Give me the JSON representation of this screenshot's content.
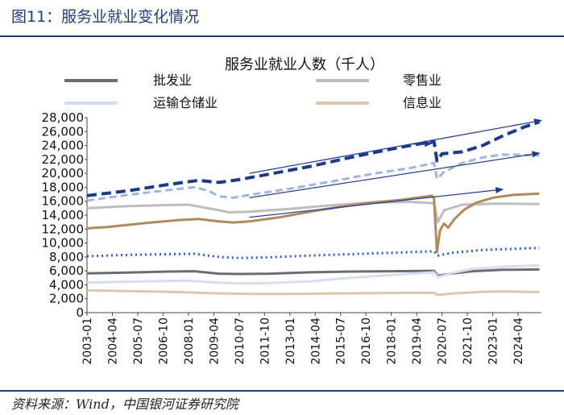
{
  "figure": {
    "title": "图11：服务业就业变化情况",
    "source": "资料来源：Wind，中国银河证券研究院"
  },
  "chart_data": {
    "type": "line",
    "title": "服务业就业人数（千人）",
    "xlabel": "",
    "ylabel": "",
    "ylim": [
      0,
      28000
    ],
    "yticks": [
      "0",
      "2,000",
      "4,000",
      "6,000",
      "8,000",
      "10,000",
      "12,000",
      "14,000",
      "16,000",
      "18,000",
      "20,000",
      "22,000",
      "24,000",
      "26,000",
      "28,000"
    ],
    "xticks": [
      "2003-01",
      "2004-04",
      "2005-07",
      "2006-10",
      "2008-01",
      "2009-04",
      "2010-07",
      "2011-10",
      "2013-01",
      "2014-04",
      "2015-07",
      "2016-10",
      "2018-01",
      "2019-04",
      "2020-07",
      "2021-10",
      "2023-01",
      "2024-04"
    ],
    "xrange": [
      2003.0,
      2025.4
    ],
    "legend": [
      {
        "label": "批发业",
        "color": "#6d6d6d"
      },
      {
        "label": "零售业",
        "color": "#bdbdbd"
      },
      {
        "label": "运输仓储业",
        "color": "#d5deef"
      },
      {
        "label": "信息业",
        "color": "#dcc7ad"
      }
    ],
    "series": [
      {
        "name": "批发业",
        "color": "#6d6d6d",
        "dash": "none",
        "width": 3,
        "points": [
          [
            2003.0,
            5650
          ],
          [
            2005.0,
            5750
          ],
          [
            2007.0,
            5900
          ],
          [
            2008.3,
            5950
          ],
          [
            2009.5,
            5600
          ],
          [
            2010.5,
            5550
          ],
          [
            2012.0,
            5600
          ],
          [
            2014.0,
            5800
          ],
          [
            2016.0,
            5900
          ],
          [
            2018.0,
            5950
          ],
          [
            2020.1,
            6000
          ],
          [
            2020.3,
            5300
          ],
          [
            2020.9,
            5600
          ],
          [
            2022.0,
            5950
          ],
          [
            2023.5,
            6150
          ],
          [
            2025.3,
            6200
          ]
        ]
      },
      {
        "name": "零售业",
        "color": "#bdbdbd",
        "dash": "none",
        "width": 3,
        "points": [
          [
            2003.0,
            15000
          ],
          [
            2005.0,
            15300
          ],
          [
            2007.0,
            15450
          ],
          [
            2008.0,
            15500
          ],
          [
            2009.5,
            14700
          ],
          [
            2010.0,
            14400
          ],
          [
            2011.0,
            14500
          ],
          [
            2013.0,
            14900
          ],
          [
            2015.0,
            15400
          ],
          [
            2017.0,
            15800
          ],
          [
            2019.0,
            15900
          ],
          [
            2020.1,
            15700
          ],
          [
            2020.3,
            13000
          ],
          [
            2020.6,
            14700
          ],
          [
            2021.5,
            15500
          ],
          [
            2023.0,
            15650
          ],
          [
            2025.3,
            15600
          ]
        ]
      },
      {
        "name": "运输仓储业",
        "color": "#d5deef",
        "dash": "none",
        "width": 3,
        "points": [
          [
            2003.0,
            4300
          ],
          [
            2005.0,
            4450
          ],
          [
            2008.0,
            4600
          ],
          [
            2009.5,
            4300
          ],
          [
            2010.5,
            4200
          ],
          [
            2012.0,
            4250
          ],
          [
            2014.0,
            4500
          ],
          [
            2016.0,
            5000
          ],
          [
            2018.0,
            5400
          ],
          [
            2020.1,
            5800
          ],
          [
            2020.3,
            5100
          ],
          [
            2021.0,
            5700
          ],
          [
            2022.0,
            6300
          ],
          [
            2023.5,
            6600
          ],
          [
            2025.3,
            6800
          ]
        ]
      },
      {
        "name": "信息业",
        "color": "#dcc7ad",
        "dash": "none",
        "width": 3,
        "points": [
          [
            2003.0,
            3200
          ],
          [
            2005.0,
            3100
          ],
          [
            2007.0,
            3000
          ],
          [
            2009.0,
            2800
          ],
          [
            2011.0,
            2700
          ],
          [
            2013.0,
            2700
          ],
          [
            2015.0,
            2750
          ],
          [
            2017.0,
            2800
          ],
          [
            2019.0,
            2850
          ],
          [
            2020.1,
            2850
          ],
          [
            2020.3,
            2550
          ],
          [
            2021.0,
            2750
          ],
          [
            2022.5,
            3000
          ],
          [
            2023.5,
            3050
          ],
          [
            2025.3,
            2950
          ]
        ]
      },
      {
        "name": "",
        "color": "#b08a5c",
        "dash": "none",
        "width": 3,
        "points": [
          [
            2003.0,
            12100
          ],
          [
            2004.0,
            12300
          ],
          [
            2006.0,
            12900
          ],
          [
            2007.5,
            13300
          ],
          [
            2008.5,
            13450
          ],
          [
            2009.5,
            13100
          ],
          [
            2010.2,
            12950
          ],
          [
            2011.0,
            13100
          ],
          [
            2012.5,
            13700
          ],
          [
            2014.0,
            14500
          ],
          [
            2015.5,
            15200
          ],
          [
            2017.0,
            15800
          ],
          [
            2018.5,
            16200
          ],
          [
            2020.0,
            16800
          ],
          [
            2020.1,
            16500
          ],
          [
            2020.25,
            8700
          ],
          [
            2020.4,
            11800
          ],
          [
            2020.6,
            12800
          ],
          [
            2020.8,
            12200
          ],
          [
            2021.1,
            13400
          ],
          [
            2021.6,
            14800
          ],
          [
            2022.2,
            15800
          ],
          [
            2023.0,
            16500
          ],
          [
            2024.0,
            16900
          ],
          [
            2025.3,
            17100
          ]
        ]
      },
      {
        "name": "",
        "color": "#2a5bd7",
        "dash": "2,4",
        "width": 3,
        "points": [
          [
            2003.0,
            8100
          ],
          [
            2005.0,
            8300
          ],
          [
            2007.0,
            8400
          ],
          [
            2008.3,
            8450
          ],
          [
            2009.5,
            8000
          ],
          [
            2010.5,
            7850
          ],
          [
            2012.0,
            7950
          ],
          [
            2014.0,
            8200
          ],
          [
            2016.0,
            8400
          ],
          [
            2018.0,
            8600
          ],
          [
            2020.1,
            8800
          ],
          [
            2020.3,
            8200
          ],
          [
            2021.0,
            8600
          ],
          [
            2022.5,
            9000
          ],
          [
            2025.3,
            9300
          ]
        ]
      },
      {
        "name": "",
        "color": "#9fb5df",
        "dash": "9,5",
        "width": 3,
        "points": [
          [
            2003.0,
            16100
          ],
          [
            2005.0,
            16900
          ],
          [
            2007.0,
            17600
          ],
          [
            2008.3,
            18000
          ],
          [
            2009.0,
            17500
          ],
          [
            2009.5,
            16700
          ],
          [
            2010.2,
            16500
          ],
          [
            2011.0,
            16900
          ],
          [
            2013.0,
            17800
          ],
          [
            2015.0,
            18800
          ],
          [
            2017.0,
            19900
          ],
          [
            2019.0,
            20800
          ],
          [
            2020.1,
            21500
          ],
          [
            2020.25,
            19200
          ],
          [
            2020.6,
            20200
          ],
          [
            2021.5,
            21500
          ],
          [
            2022.5,
            22300
          ],
          [
            2023.5,
            22700
          ],
          [
            2025.3,
            22600
          ]
        ]
      },
      {
        "name": "",
        "color": "#1a3a8f",
        "dash": "12,6",
        "width": 4,
        "points": [
          [
            2003.0,
            16800
          ],
          [
            2005.0,
            17500
          ],
          [
            2007.0,
            18400
          ],
          [
            2008.5,
            19000
          ],
          [
            2009.5,
            18700
          ],
          [
            2010.5,
            19100
          ],
          [
            2012.0,
            19900
          ],
          [
            2014.0,
            21000
          ],
          [
            2016.0,
            22300
          ],
          [
            2018.0,
            23500
          ],
          [
            2019.5,
            24300
          ],
          [
            2020.1,
            24600
          ],
          [
            2020.25,
            21800
          ],
          [
            2020.5,
            22800
          ],
          [
            2021.5,
            23100
          ],
          [
            2022.5,
            24000
          ],
          [
            2023.5,
            25400
          ],
          [
            2024.5,
            26600
          ],
          [
            2025.3,
            27400
          ]
        ]
      }
    ],
    "trend_arrows": [
      {
        "color": "#2a3f92",
        "from": [
          2011.0,
          20000
        ],
        "to": [
          2025.4,
          27600
        ]
      },
      {
        "color": "#2a3f92",
        "from": [
          2011.0,
          16500
        ],
        "to": [
          2025.3,
          22900
        ]
      },
      {
        "color": "#2a3f92",
        "from": [
          2011.0,
          13700
        ],
        "to": [
          2023.5,
          17700
        ]
      },
      {
        "color": "#2a3f92",
        "from": [
          2019.0,
          24200
        ],
        "to": [
          2020.0,
          24300
        ]
      }
    ]
  }
}
